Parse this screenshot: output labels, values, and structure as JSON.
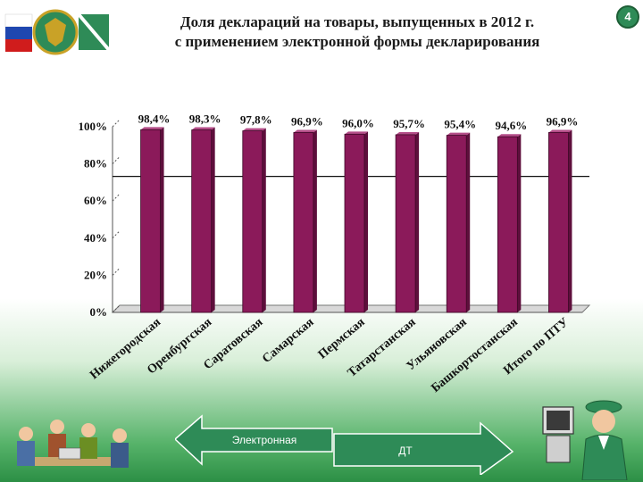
{
  "slide": {
    "title_line1": "Доля деклараций на товары, выпущенных в 2012 г.",
    "title_line2": "с применением электронной формы декларирования",
    "page_number": "4"
  },
  "legend_arrows": {
    "left_label": "Электронная",
    "right_label": "ДТ"
  },
  "chart_data": {
    "type": "bar",
    "categories": [
      "Нижегородская",
      "Оренбургская",
      "Саратовская",
      "Самарская",
      "Пермская",
      "Татарстанская",
      "Ульяновская",
      "Башкортостанская",
      "Итого по ПТУ"
    ],
    "values": [
      98.4,
      98.3,
      97.8,
      96.9,
      96.0,
      95.7,
      95.4,
      94.6,
      96.9
    ],
    "value_labels": [
      "98,4%",
      "98,3%",
      "97,8%",
      "96,9%",
      "96,0%",
      "95,7%",
      "95,4%",
      "94,6%",
      "96,9%"
    ],
    "y_ticks": [
      "0%",
      "20%",
      "40%",
      "60%",
      "80%",
      "100%"
    ],
    "ylim": [
      0,
      100
    ],
    "bar_color": "#8b1a5a",
    "title": "",
    "xlabel": "",
    "ylabel": ""
  }
}
